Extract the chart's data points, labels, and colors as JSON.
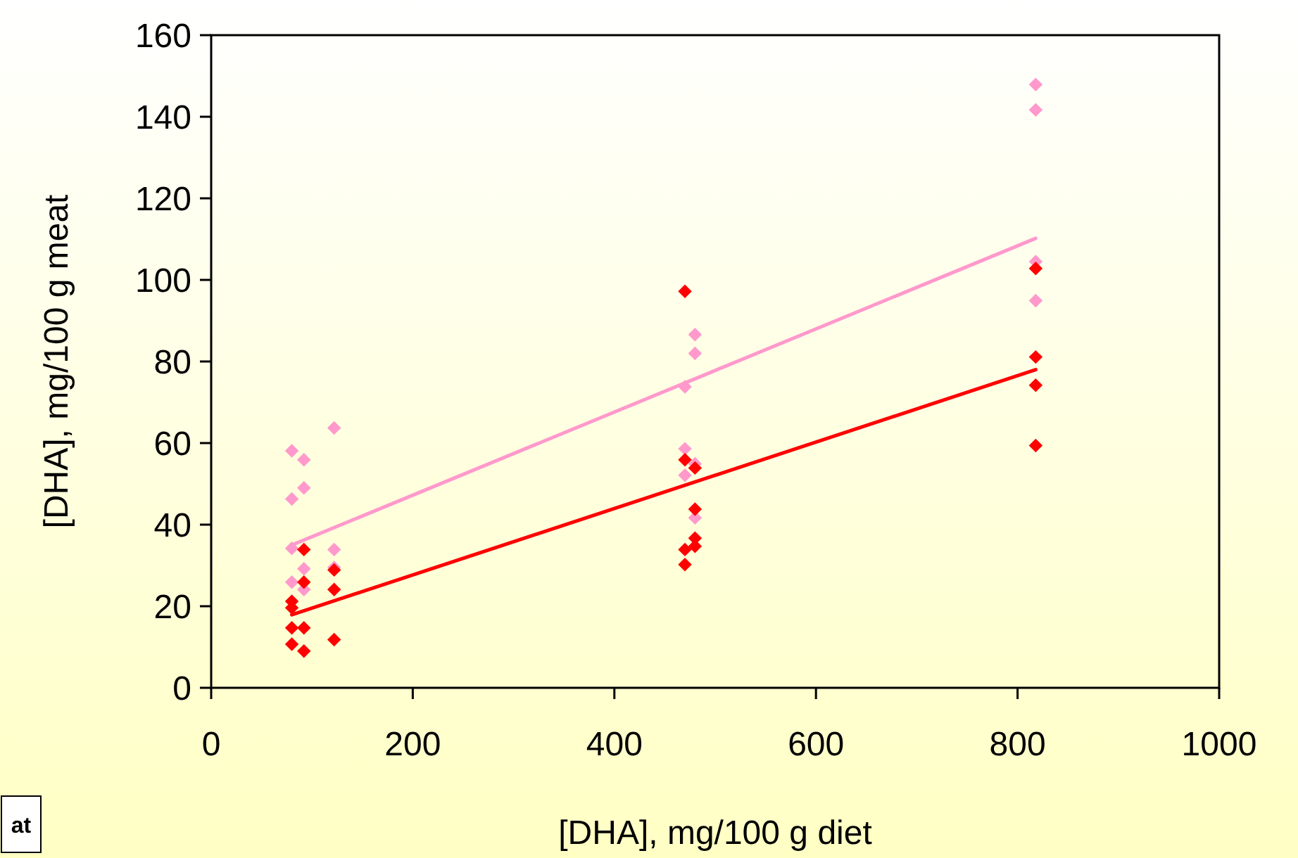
{
  "chart_data": {
    "type": "scatter",
    "xlabel": "[DHA], mg/100 g diet",
    "ylabel": "[DHA], mg/100 g meat",
    "xlim": [
      0,
      1000
    ],
    "xticks": [
      0,
      200,
      400,
      600,
      800,
      1000
    ],
    "ylim": [
      0,
      160
    ],
    "yticks": [
      0,
      20,
      40,
      60,
      80,
      100,
      120,
      140,
      160
    ],
    "grid": false,
    "annotations": [
      "at"
    ],
    "series": [
      {
        "marker": "diamond",
        "color": "#ff99cc",
        "x": [
          80,
          80,
          80,
          80,
          92,
          92,
          92,
          92,
          122,
          122,
          122,
          470,
          470,
          470,
          480,
          480,
          480,
          480,
          818,
          818,
          818,
          818
        ],
        "values": [
          58.1,
          46.3,
          34.2,
          25.9,
          55.9,
          49,
          29.2,
          24.1,
          63.7,
          33.9,
          29.5,
          73.8,
          58.6,
          52.1,
          86.6,
          82,
          54.9,
          41.7,
          147.9,
          141.7,
          104.5,
          94.9
        ]
      },
      {
        "marker": "diamond",
        "color": "#ff0000",
        "x": [
          80,
          80,
          80,
          80,
          92,
          92,
          92,
          92,
          122,
          122,
          122,
          470,
          470,
          470,
          470,
          480,
          480,
          480,
          480,
          818,
          818,
          818,
          818
        ],
        "values": [
          21.2,
          19.6,
          14.7,
          10.7,
          33.9,
          25.9,
          14.7,
          9,
          28.9,
          24.1,
          11.8,
          97.2,
          55.9,
          33.9,
          30.2,
          53.9,
          43.8,
          36.7,
          34.7,
          102.8,
          81.1,
          74.2,
          59.4
        ]
      },
      {
        "type": "line",
        "marker": "none",
        "color": "#ff99cc",
        "x": [
          80,
          818
        ],
        "values": [
          35,
          110.2
        ]
      },
      {
        "type": "line",
        "marker": "none",
        "color": "#ff0000",
        "x": [
          80,
          818
        ],
        "values": [
          17.9,
          78
        ]
      }
    ]
  }
}
